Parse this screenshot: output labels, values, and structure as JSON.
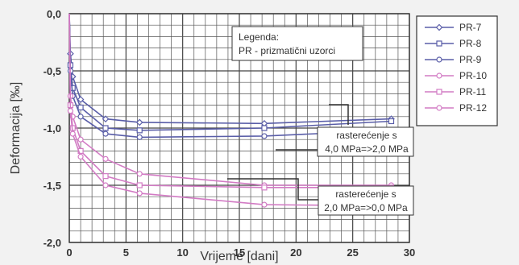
{
  "chart_data": {
    "type": "line",
    "xlabel": "Vrijeme [dani]",
    "ylabel": "Deformacija [‰]",
    "xlim": [
      0,
      30
    ],
    "ylim": [
      -2.0,
      0.0
    ],
    "x_ticks": [
      "0",
      "5",
      "10",
      "15",
      "20",
      "25",
      "30"
    ],
    "y_ticks": [
      "0,0",
      "-0,5",
      "-1,0",
      "-1,5",
      "-2,0"
    ],
    "grid": true,
    "legend_position": "right",
    "series": [
      {
        "name": "PR-7",
        "color": "#5a5ea8",
        "marker": "diamond",
        "points": [
          [
            0,
            0
          ],
          [
            0.1,
            -0.35
          ],
          [
            0.3,
            -0.55
          ],
          [
            1,
            -0.75
          ],
          [
            3.2,
            -0.92
          ],
          [
            6.2,
            -0.95
          ],
          [
            17.2,
            -0.96
          ],
          [
            28.4,
            -0.92
          ]
        ]
      },
      {
        "name": "PR-8",
        "color": "#5a5ea8",
        "marker": "square",
        "points": [
          [
            0,
            0
          ],
          [
            0.1,
            -0.45
          ],
          [
            0.3,
            -0.65
          ],
          [
            1,
            -0.82
          ],
          [
            3.2,
            -1.0
          ],
          [
            6.2,
            -1.02
          ],
          [
            17.2,
            -1.0
          ],
          [
            28.4,
            -0.94
          ]
        ]
      },
      {
        "name": "PR-9",
        "color": "#5a5ea8",
        "marker": "circle",
        "points": [
          [
            0,
            0
          ],
          [
            0.1,
            -0.5
          ],
          [
            0.3,
            -0.72
          ],
          [
            1,
            -0.9
          ],
          [
            3.2,
            -1.05
          ],
          [
            6.2,
            -1.08
          ],
          [
            17.2,
            -1.07
          ],
          [
            28.4,
            -1.02
          ]
        ]
      },
      {
        "name": "PR-10",
        "color": "#d27bc4",
        "marker": "circle",
        "points": [
          [
            0,
            0
          ],
          [
            0.1,
            -0.72
          ],
          [
            0.3,
            -0.9
          ],
          [
            1,
            -1.1
          ],
          [
            3.2,
            -1.27
          ],
          [
            6.2,
            -1.4
          ],
          [
            17.2,
            -1.5
          ],
          [
            28.4,
            -1.5
          ]
        ]
      },
      {
        "name": "PR-11",
        "color": "#d27bc4",
        "marker": "square",
        "points": [
          [
            0,
            0
          ],
          [
            0.1,
            -0.8
          ],
          [
            0.3,
            -1.0
          ],
          [
            1,
            -1.2
          ],
          [
            3.2,
            -1.42
          ],
          [
            6.2,
            -1.5
          ],
          [
            17.2,
            -1.52
          ],
          [
            28.4,
            -1.52
          ]
        ]
      },
      {
        "name": "PR-12",
        "color": "#d27bc4",
        "marker": "circle",
        "points": [
          [
            0,
            0
          ],
          [
            0.1,
            -0.85
          ],
          [
            0.3,
            -1.05
          ],
          [
            1,
            -1.25
          ],
          [
            3.2,
            -1.5
          ],
          [
            6.2,
            -1.57
          ],
          [
            17.2,
            -1.67
          ],
          [
            28.4,
            -1.68
          ]
        ]
      }
    ],
    "annotations": {
      "legend_box": [
        "Legenda:",
        "PR - prizmatični uzorci"
      ],
      "note_1": [
        "rasterećenje s",
        "4,0 MPa=>2,0 MPa"
      ],
      "note_2": [
        "rasterećenje s",
        "2,0 MPa=>0,0 MPa"
      ]
    }
  }
}
